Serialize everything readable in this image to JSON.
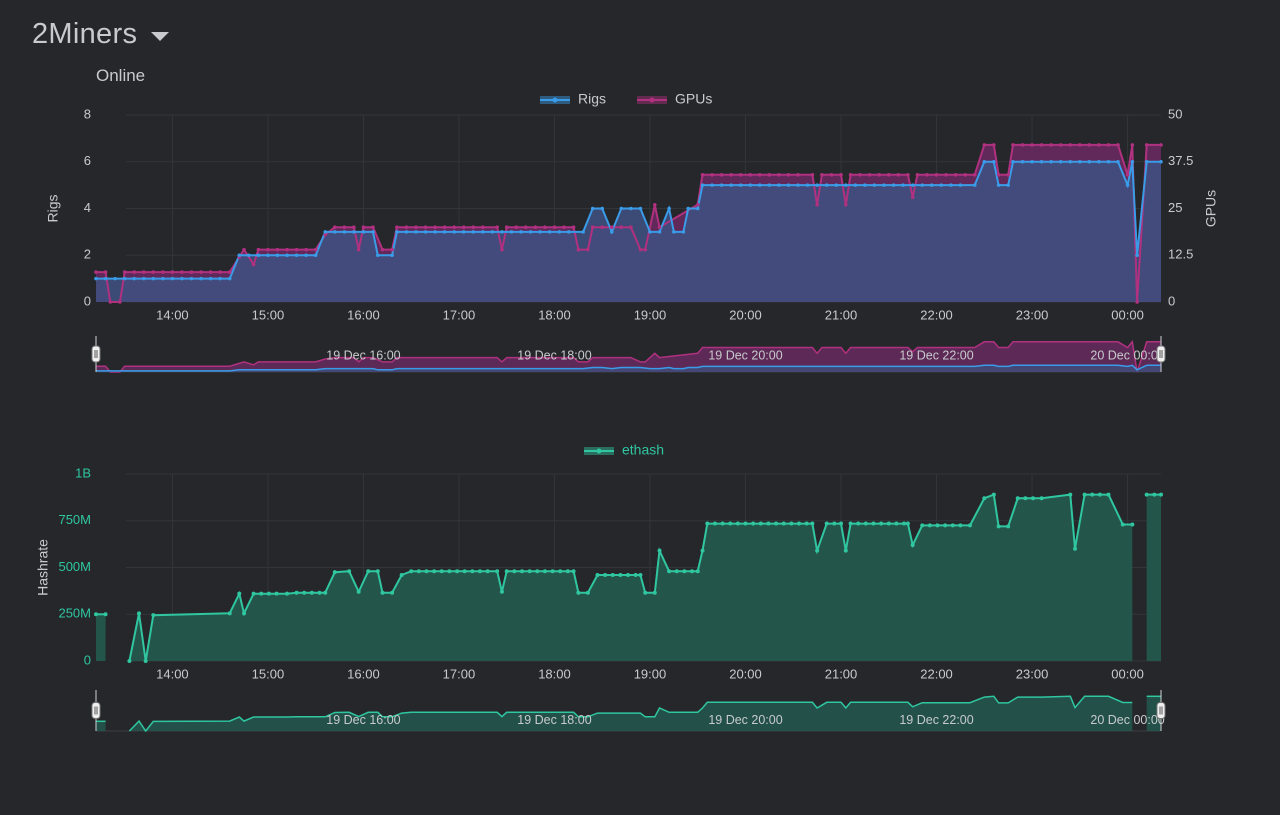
{
  "header": {
    "title": "2Miners",
    "subtitle": "Online"
  },
  "colors": {
    "background": "#25272b",
    "rigs": "#3a9ce8",
    "gpus": "#b0317f",
    "rigs_fill": "#3f4f7e",
    "gpus_fill": "#6b2a62",
    "ethash": "#2fc6a0",
    "ethash_fill": "#24574d",
    "grid": "#32353a",
    "text": "#c8cacd"
  },
  "chart_data": [
    {
      "type": "line",
      "x_ticks": [
        "14:00",
        "15:00",
        "16:00",
        "17:00",
        "18:00",
        "19:00",
        "20:00",
        "21:00",
        "22:00",
        "23:00",
        "00:00"
      ],
      "x_range_hours": [
        13.2,
        24.35
      ],
      "y_left": {
        "label": "Rigs",
        "ticks": [
          "0",
          "2",
          "4",
          "6",
          "8"
        ],
        "range": [
          0,
          8
        ]
      },
      "y_right": {
        "label": "GPUs",
        "ticks": [
          "0",
          "12.5",
          "25",
          "37.5",
          "50"
        ],
        "range": [
          0,
          50
        ]
      },
      "legend": [
        "Rigs",
        "GPUs"
      ],
      "legend_position": "top-center",
      "series": [
        {
          "name": "Rigs",
          "axis": "left",
          "points": [
            [
              13.2,
              1
            ],
            [
              14.6,
              1
            ],
            [
              14.7,
              2
            ],
            [
              15.5,
              2
            ],
            [
              15.6,
              3
            ],
            [
              16.1,
              3
            ],
            [
              16.15,
              2
            ],
            [
              16.3,
              2
            ],
            [
              16.35,
              3
            ],
            [
              18.3,
              3
            ],
            [
              18.4,
              4
            ],
            [
              18.5,
              4
            ],
            [
              18.6,
              3
            ],
            [
              18.7,
              4
            ],
            [
              18.9,
              4
            ],
            [
              19.0,
              3
            ],
            [
              19.1,
              3
            ],
            [
              19.2,
              4
            ],
            [
              19.25,
              3
            ],
            [
              19.35,
              3
            ],
            [
              19.4,
              4
            ],
            [
              19.5,
              4
            ],
            [
              19.55,
              5
            ],
            [
              22.4,
              5
            ],
            [
              22.5,
              6
            ],
            [
              22.6,
              6
            ],
            [
              22.65,
              5
            ],
            [
              22.75,
              5
            ],
            [
              22.8,
              6
            ],
            [
              23.9,
              6
            ],
            [
              24.0,
              5
            ],
            [
              24.05,
              6
            ],
            [
              24.1,
              2
            ],
            [
              24.2,
              6
            ],
            [
              24.35,
              6
            ]
          ]
        },
        {
          "name": "GPUs",
          "axis": "right",
          "points": [
            [
              13.2,
              8
            ],
            [
              13.3,
              8
            ],
            [
              13.35,
              0
            ],
            [
              13.45,
              0
            ],
            [
              13.5,
              8
            ],
            [
              14.6,
              8
            ],
            [
              14.7,
              12
            ],
            [
              14.75,
              14
            ],
            [
              14.85,
              10
            ],
            [
              14.9,
              14
            ],
            [
              15.5,
              14
            ],
            [
              15.6,
              18
            ],
            [
              15.7,
              20
            ],
            [
              15.9,
              20
            ],
            [
              15.95,
              14
            ],
            [
              16.0,
              20
            ],
            [
              16.1,
              20
            ],
            [
              16.2,
              14
            ],
            [
              16.3,
              14
            ],
            [
              16.35,
              20
            ],
            [
              17.4,
              20
            ],
            [
              17.45,
              14
            ],
            [
              17.5,
              20
            ],
            [
              18.2,
              20
            ],
            [
              18.25,
              14
            ],
            [
              18.35,
              14
            ],
            [
              18.4,
              20
            ],
            [
              18.8,
              20
            ],
            [
              18.9,
              14
            ],
            [
              18.95,
              14
            ],
            [
              19.05,
              26
            ],
            [
              19.1,
              20
            ],
            [
              19.5,
              26
            ],
            [
              19.55,
              34
            ],
            [
              20.7,
              34
            ],
            [
              20.75,
              26
            ],
            [
              20.8,
              34
            ],
            [
              21.0,
              34
            ],
            [
              21.05,
              26
            ],
            [
              21.1,
              34
            ],
            [
              21.7,
              34
            ],
            [
              21.75,
              28
            ],
            [
              21.8,
              34
            ],
            [
              22.4,
              34
            ],
            [
              22.5,
              42
            ],
            [
              22.6,
              42
            ],
            [
              22.65,
              34
            ],
            [
              22.75,
              34
            ],
            [
              22.8,
              42
            ],
            [
              23.9,
              42
            ],
            [
              24.0,
              34
            ],
            [
              24.05,
              42
            ],
            [
              24.1,
              0
            ],
            [
              24.2,
              42
            ],
            [
              24.35,
              42
            ]
          ]
        }
      ],
      "navigator_labels": [
        "19 Dec 16:00",
        "19 Dec 18:00",
        "19 Dec 20:00",
        "19 Dec 22:00",
        "20 Dec 00:00"
      ]
    },
    {
      "type": "area",
      "x_ticks": [
        "14:00",
        "15:00",
        "16:00",
        "17:00",
        "18:00",
        "19:00",
        "20:00",
        "21:00",
        "22:00",
        "23:00",
        "00:00"
      ],
      "x_range_hours": [
        13.2,
        24.35
      ],
      "y": {
        "label": "Hashrate",
        "ticks": [
          "0",
          "250M",
          "500M",
          "750M",
          "1B"
        ],
        "range": [
          0,
          1000
        ]
      },
      "legend": [
        "ethash"
      ],
      "legend_position": "top-center",
      "series": [
        {
          "name": "ethash",
          "segments": [
            [
              [
                13.2,
                250
              ],
              [
                13.3,
                250
              ]
            ],
            [
              [
                13.55,
                0
              ],
              [
                13.65,
                255
              ],
              [
                13.72,
                0
              ],
              [
                13.8,
                245
              ],
              [
                14.6,
                255
              ],
              [
                14.7,
                360
              ],
              [
                14.75,
                255
              ],
              [
                14.85,
                360
              ],
              [
                15.2,
                360
              ],
              [
                15.3,
                365
              ],
              [
                15.6,
                365
              ],
              [
                15.7,
                475
              ],
              [
                15.85,
                480
              ],
              [
                15.95,
                370
              ],
              [
                16.05,
                480
              ],
              [
                16.15,
                480
              ],
              [
                16.2,
                365
              ],
              [
                16.3,
                365
              ],
              [
                16.4,
                460
              ],
              [
                16.5,
                480
              ],
              [
                17.4,
                480
              ],
              [
                17.45,
                370
              ],
              [
                17.5,
                480
              ],
              [
                18.2,
                480
              ],
              [
                18.25,
                365
              ],
              [
                18.35,
                365
              ],
              [
                18.45,
                460
              ],
              [
                18.9,
                460
              ],
              [
                18.95,
                365
              ],
              [
                19.05,
                365
              ],
              [
                19.1,
                590
              ],
              [
                19.2,
                480
              ],
              [
                19.5,
                480
              ],
              [
                19.55,
                590
              ],
              [
                19.6,
                735
              ],
              [
                20.7,
                735
              ],
              [
                20.75,
                590
              ],
              [
                20.85,
                735
              ],
              [
                21.0,
                735
              ],
              [
                21.05,
                590
              ],
              [
                21.1,
                735
              ],
              [
                21.7,
                735
              ],
              [
                21.75,
                620
              ],
              [
                21.85,
                725
              ],
              [
                22.35,
                725
              ],
              [
                22.5,
                870
              ],
              [
                22.6,
                890
              ],
              [
                22.65,
                720
              ],
              [
                22.75,
                720
              ],
              [
                22.85,
                870
              ],
              [
                23.1,
                870
              ],
              [
                23.4,
                890
              ],
              [
                23.45,
                600
              ],
              [
                23.55,
                890
              ],
              [
                23.8,
                890
              ],
              [
                23.95,
                730
              ],
              [
                24.05,
                730
              ]
            ],
            [
              [
                24.2,
                890
              ],
              [
                24.35,
                890
              ]
            ]
          ]
        }
      ],
      "navigator_labels": [
        "19 Dec 16:00",
        "19 Dec 18:00",
        "19 Dec 20:00",
        "19 Dec 22:00",
        "20 Dec 00:00"
      ]
    }
  ]
}
